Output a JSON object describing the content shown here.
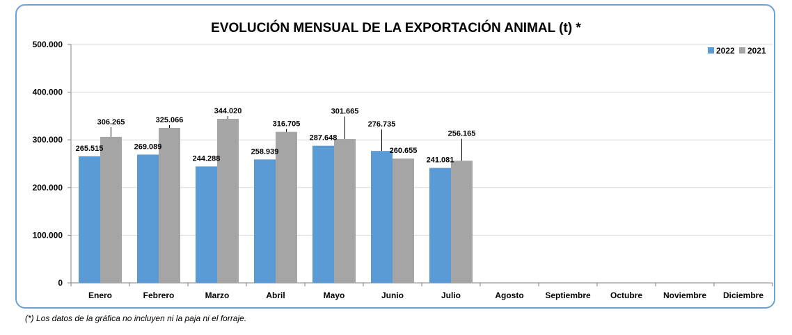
{
  "chart_data": {
    "type": "bar",
    "title": "EVOLUCIÓN MENSUAL DE LA EXPORTACIÓN ANIMAL (t) *",
    "xlabel": "",
    "ylabel": "",
    "categories": [
      "Enero",
      "Febrero",
      "Marzo",
      "Abril",
      "Mayo",
      "Junio",
      "Julio",
      "Agosto",
      "Septiembre",
      "Octubre",
      "Noviembre",
      "Diciembre"
    ],
    "series": [
      {
        "name": "2022",
        "color": "#5b9bd5",
        "values": [
          265515,
          269089,
          244288,
          258939,
          287648,
          276735,
          241081,
          null,
          null,
          null,
          null,
          null
        ],
        "labels": [
          "265.515",
          "269.089",
          "244.288",
          "258.939",
          "287.648",
          "276.735",
          "241.081",
          "",
          "",
          "",
          "",
          ""
        ]
      },
      {
        "name": "2021",
        "color": "#a5a5a5",
        "values": [
          306265,
          325066,
          344020,
          316705,
          301665,
          260655,
          256165,
          null,
          null,
          null,
          null,
          null
        ],
        "labels": [
          "306.265",
          "325.066",
          "344.020",
          "316.705",
          "301.665",
          "260.655",
          "256.165",
          "",
          "",
          "",
          "",
          ""
        ]
      }
    ],
    "ylim": [
      0,
      500000
    ],
    "yticks": [
      0,
      100000,
      200000,
      300000,
      400000,
      500000
    ],
    "ytick_labels": [
      "0",
      "100.000",
      "200.000",
      "300.000",
      "400.000",
      "500.000"
    ],
    "grid": true,
    "legend_position": "top-right"
  },
  "footnote": "(*) Los datos de la gráfica no incluyen ni la paja ni el forraje."
}
